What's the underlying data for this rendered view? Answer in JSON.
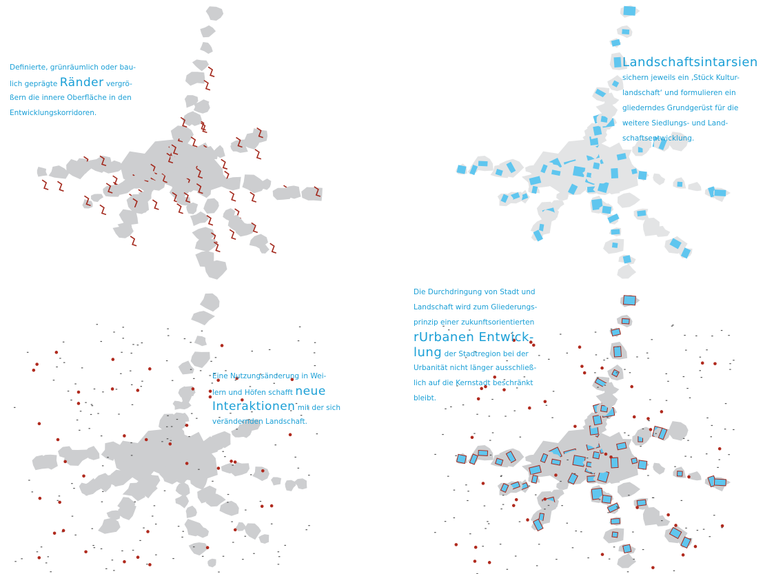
{
  "panels": [
    {
      "lines": [
        [
          {
            "text": "Definierte, grünräumlich oder bau-"
          }
        ],
        [
          {
            "text": "lich geprägte "
          },
          {
            "emphasis": "Ränder"
          },
          {
            "text": " vergrö-"
          }
        ],
        [
          {
            "text": "ßern die innere Oberfläche in den"
          }
        ],
        [
          {
            "text": "Entwicklungskorridoren."
          }
        ]
      ]
    },
    {
      "lines": [
        [
          {
            "emphasis": "Landschaftsintarsien"
          }
        ],
        [
          {
            "text": "sichern jeweils ein ‚Stück Kultur-"
          }
        ],
        [
          {
            "text": "landschaft‘ und formulieren ein"
          }
        ],
        [
          {
            "text": "gliederndes Grundgerüst für die"
          }
        ],
        [
          {
            "text": "weitere Siedlungs- und Land-"
          }
        ],
        [
          {
            "text": "schaftsentwicklung."
          }
        ]
      ]
    },
    {
      "lines": [
        [
          {
            "text": "Eine Nutzungsänderung in Wei-"
          }
        ],
        [
          {
            "text": "lern und Höfen schafft "
          },
          {
            "emphasis": "neue"
          }
        ],
        [
          {
            "emphasis": "Interaktionen"
          },
          {
            "text": " mit der sich"
          }
        ],
        [
          {
            "text": "verändernden Landschaft."
          }
        ]
      ]
    },
    {
      "lines": [
        [
          {
            "text": "Die Durchdringung von Stadt und"
          }
        ],
        [
          {
            "text": "Landschaft wird zum Gliederungs-"
          }
        ],
        [
          {
            "text": "prinzip einer zukunftsorientierten"
          }
        ],
        [
          {
            "emphasis": "rUrbanen Entwick-"
          }
        ],
        [
          {
            "emphasis": "lung"
          },
          {
            "text": " der Stadtregion bei der"
          }
        ],
        [
          {
            "text": "Urbanität nicht länger ausschließ-"
          }
        ],
        [
          {
            "text": "lich auf die Kernstadt beschränkt"
          }
        ],
        [
          {
            "text": "bleibt."
          }
        ]
      ]
    }
  ]
}
